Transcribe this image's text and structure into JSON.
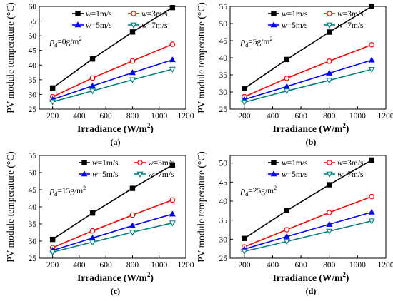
{
  "figure": {
    "ylabel_text": "PV module temperature (°C)",
    "xlabel_text": "Irradiance (W/m",
    "xlabel_sup": "2",
    "xlabel_close": ")"
  },
  "legend": {
    "var": "w",
    "eq": "=",
    "units": "m/s"
  },
  "annotation": {
    "symbol": "ρ",
    "sub": "d",
    "unit": "g/m",
    "unit_sup": "2"
  },
  "chart_data": [
    {
      "type": "line",
      "panel_label": "(a)",
      "annotation_value": "=0",
      "x": [
        200,
        500,
        800,
        1100
      ],
      "xlim": [
        100,
        1200
      ],
      "xticks": [
        200,
        400,
        600,
        800,
        1000,
        1200
      ],
      "ylim": [
        25,
        60
      ],
      "yticks": [
        25,
        30,
        35,
        40,
        45,
        50,
        55,
        60
      ],
      "series": [
        {
          "name": "w=1m/s",
          "speed": "1",
          "color": "#000000",
          "marker": "square",
          "values": [
            32.2,
            42.1,
            51.3,
            59.6
          ]
        },
        {
          "name": "w=3m/s",
          "speed": "3",
          "color": "#ff0000",
          "marker": "circle",
          "values": [
            29.2,
            35.6,
            41.4,
            47.1
          ]
        },
        {
          "name": "w=5m/s",
          "speed": "5",
          "color": "#0000ff",
          "marker": "triangle-up",
          "values": [
            28.3,
            32.9,
            37.4,
            41.8
          ]
        },
        {
          "name": "w=7m/s",
          "speed": "7",
          "color": "#008080",
          "marker": "triangle-down",
          "values": [
            27.5,
            31.2,
            35.0,
            38.6
          ]
        }
      ]
    },
    {
      "type": "line",
      "panel_label": "(b)",
      "annotation_value": "=5",
      "x": [
        200,
        500,
        800,
        1100
      ],
      "xlim": [
        100,
        1200
      ],
      "xticks": [
        200,
        400,
        600,
        800,
        1000,
        1200
      ],
      "ylim": [
        25,
        55
      ],
      "yticks": [
        25,
        30,
        35,
        40,
        45,
        50,
        55
      ],
      "series": [
        {
          "name": "w=1m/s",
          "speed": "1",
          "color": "#000000",
          "marker": "square",
          "values": [
            31.0,
            39.5,
            47.5,
            55.0
          ]
        },
        {
          "name": "w=3m/s",
          "speed": "3",
          "color": "#ff0000",
          "marker": "circle",
          "values": [
            28.6,
            34.0,
            39.0,
            43.8
          ]
        },
        {
          "name": "w=5m/s",
          "speed": "5",
          "color": "#0000ff",
          "marker": "triangle-up",
          "values": [
            27.8,
            31.6,
            35.5,
            39.3
          ]
        },
        {
          "name": "w=7m/s",
          "speed": "7",
          "color": "#008080",
          "marker": "triangle-down",
          "values": [
            27.0,
            30.3,
            33.4,
            36.6
          ]
        }
      ]
    },
    {
      "type": "line",
      "panel_label": "(c)",
      "annotation_value": "=15",
      "x": [
        200,
        500,
        800,
        1100
      ],
      "xlim": [
        100,
        1200
      ],
      "xticks": [
        200,
        400,
        600,
        800,
        1000,
        1200
      ],
      "ylim": [
        25,
        55
      ],
      "yticks": [
        25,
        30,
        35,
        40,
        45,
        50,
        55
      ],
      "series": [
        {
          "name": "w=1m/s",
          "speed": "1",
          "color": "#000000",
          "marker": "square",
          "values": [
            30.5,
            38.2,
            45.4,
            52.2
          ]
        },
        {
          "name": "w=3m/s",
          "speed": "3",
          "color": "#ff0000",
          "marker": "circle",
          "values": [
            28.1,
            33.0,
            37.6,
            42.0
          ]
        },
        {
          "name": "w=5m/s",
          "speed": "5",
          "color": "#0000ff",
          "marker": "triangle-up",
          "values": [
            27.3,
            30.9,
            34.5,
            37.9
          ]
        },
        {
          "name": "w=7m/s",
          "speed": "7",
          "color": "#008080",
          "marker": "triangle-down",
          "values": [
            26.8,
            29.7,
            32.6,
            35.3
          ]
        }
      ]
    },
    {
      "type": "line",
      "panel_label": "(d)",
      "annotation_value": "=25",
      "x": [
        200,
        500,
        800,
        1100
      ],
      "xlim": [
        100,
        1200
      ],
      "xticks": [
        200,
        400,
        600,
        800,
        1000,
        1200
      ],
      "ylim": [
        25,
        52
      ],
      "yticks": [
        25,
        30,
        35,
        40,
        45,
        50
      ],
      "series": [
        {
          "name": "w=1m/s",
          "speed": "1",
          "color": "#000000",
          "marker": "square",
          "values": [
            30.2,
            37.5,
            44.3,
            50.8
          ]
        },
        {
          "name": "w=3m/s",
          "speed": "3",
          "color": "#ff0000",
          "marker": "circle",
          "values": [
            28.0,
            32.5,
            37.0,
            41.2
          ]
        },
        {
          "name": "w=5m/s",
          "speed": "5",
          "color": "#0000ff",
          "marker": "triangle-up",
          "values": [
            27.4,
            30.7,
            33.9,
            37.1
          ]
        },
        {
          "name": "w=7m/s",
          "speed": "7",
          "color": "#008080",
          "marker": "triangle-down",
          "values": [
            26.8,
            29.4,
            32.1,
            34.8
          ]
        }
      ]
    }
  ]
}
